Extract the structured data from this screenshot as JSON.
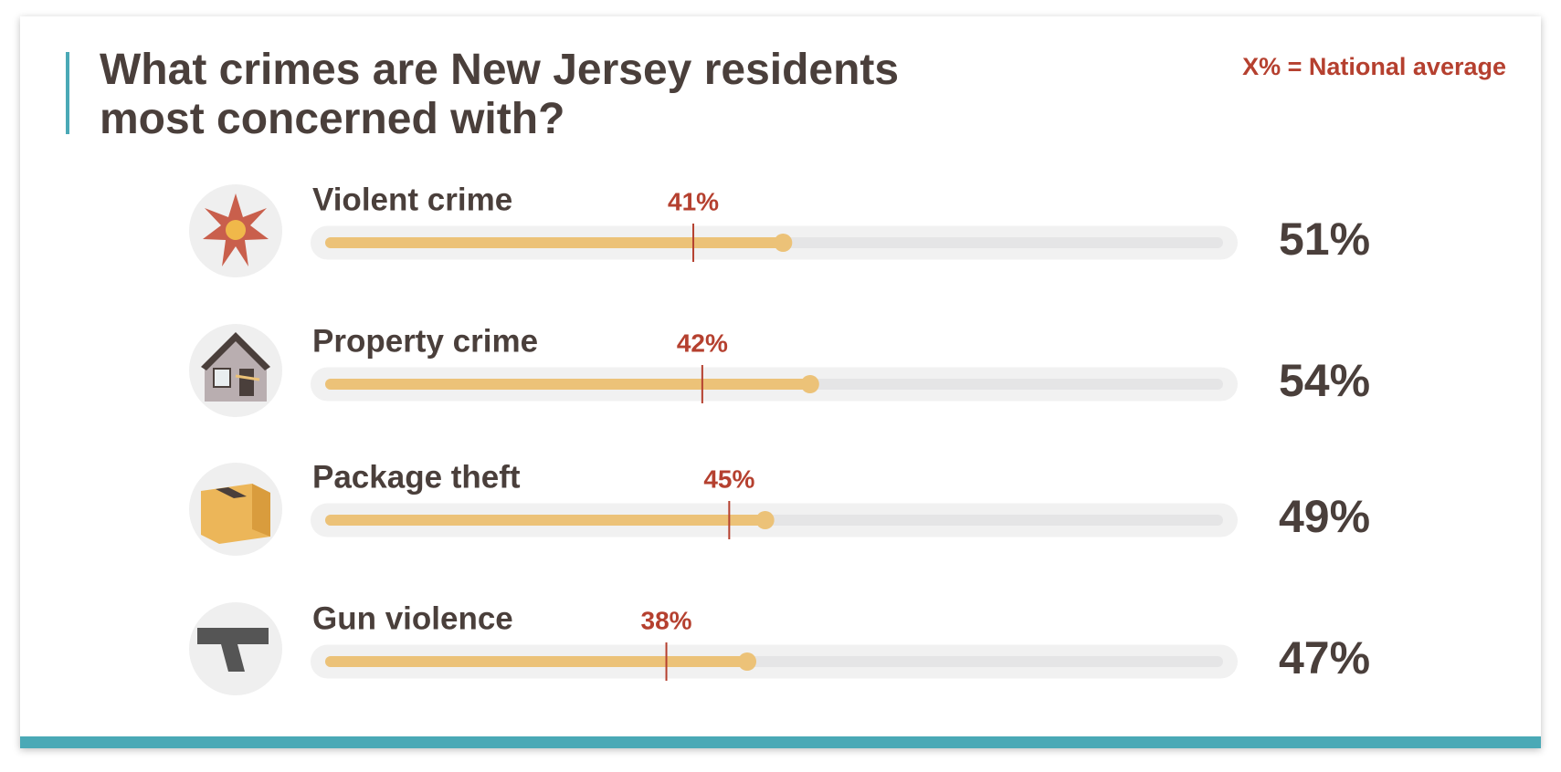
{
  "chart_data": {
    "type": "bar",
    "orientation": "horizontal",
    "title": "What crimes are New Jersey residents most concerned with?",
    "legend_label": "X% = National average",
    "categories": [
      "Violent crime",
      "Property crime",
      "Package theft",
      "Gun violence"
    ],
    "values": [
      51,
      54,
      49,
      47
    ],
    "value_labels": [
      "51%",
      "54%",
      "49%",
      "47%"
    ],
    "color": "#ecc278",
    "national_average": {
      "values": [
        41,
        42,
        45,
        38
      ],
      "value_labels": [
        "41%",
        "42%",
        "45%",
        "38%"
      ],
      "color": "#b5402f"
    },
    "xlim": [
      0,
      100
    ]
  }
}
